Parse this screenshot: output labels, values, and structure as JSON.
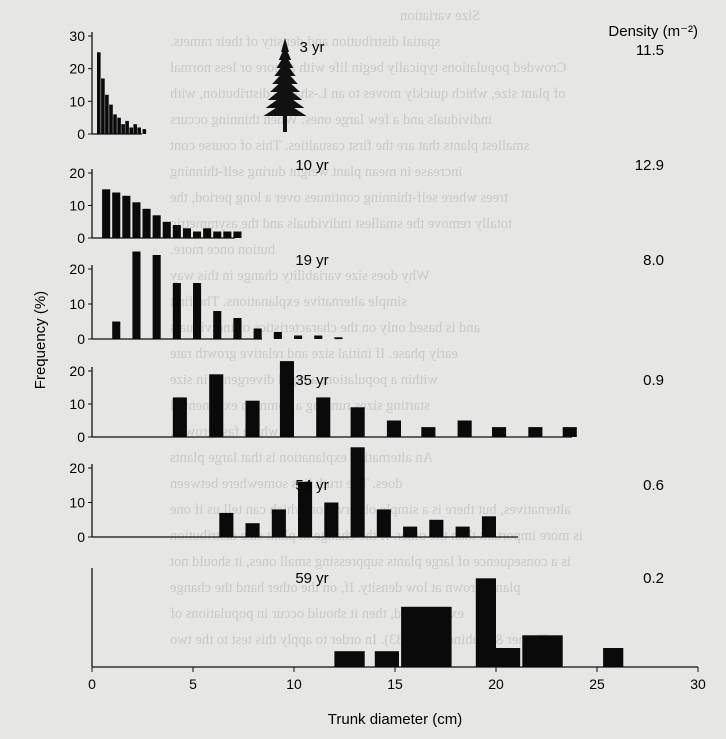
{
  "chart_data": {
    "type": "bar",
    "xlabel": "Trunk diameter (cm)",
    "ylabel": "Frequency (%)",
    "density_header": "Density (m⁻²)",
    "xlim": [
      0,
      30
    ],
    "x_ticks": [
      "0",
      "5",
      "10",
      "15",
      "20",
      "25",
      "30"
    ],
    "panels": [
      {
        "label": "3 yr",
        "density": "11.5",
        "ylim": [
          0,
          30
        ],
        "y_ticks": [
          "30",
          "20",
          "10",
          "0"
        ],
        "bars": [
          {
            "x": 0.25,
            "w": 0.18,
            "v": 25
          },
          {
            "x": 0.45,
            "w": 0.18,
            "v": 17
          },
          {
            "x": 0.65,
            "w": 0.18,
            "v": 12
          },
          {
            "x": 0.85,
            "w": 0.18,
            "v": 9
          },
          {
            "x": 1.05,
            "w": 0.18,
            "v": 6
          },
          {
            "x": 1.25,
            "w": 0.18,
            "v": 5
          },
          {
            "x": 1.45,
            "w": 0.18,
            "v": 3
          },
          {
            "x": 1.65,
            "w": 0.18,
            "v": 4
          },
          {
            "x": 1.85,
            "w": 0.18,
            "v": 2
          },
          {
            "x": 2.05,
            "w": 0.18,
            "v": 3
          },
          {
            "x": 2.25,
            "w": 0.18,
            "v": 2
          },
          {
            "x": 2.5,
            "w": 0.18,
            "v": 1.5
          }
        ]
      },
      {
        "label": "10 yr",
        "density": "12.9",
        "ylim": [
          0,
          20
        ],
        "y_ticks": [
          "20",
          "10",
          "0"
        ],
        "bars": [
          {
            "x": 0.5,
            "w": 0.4,
            "v": 15
          },
          {
            "x": 1.0,
            "w": 0.4,
            "v": 14
          },
          {
            "x": 1.5,
            "w": 0.4,
            "v": 13
          },
          {
            "x": 2.0,
            "w": 0.4,
            "v": 11
          },
          {
            "x": 2.5,
            "w": 0.4,
            "v": 9
          },
          {
            "x": 3.0,
            "w": 0.4,
            "v": 7
          },
          {
            "x": 3.5,
            "w": 0.4,
            "v": 5
          },
          {
            "x": 4.0,
            "w": 0.4,
            "v": 4
          },
          {
            "x": 4.5,
            "w": 0.4,
            "v": 3
          },
          {
            "x": 5.0,
            "w": 0.4,
            "v": 2
          },
          {
            "x": 5.5,
            "w": 0.4,
            "v": 3
          },
          {
            "x": 6.0,
            "w": 0.4,
            "v": 2
          },
          {
            "x": 6.5,
            "w": 0.4,
            "v": 2
          },
          {
            "x": 7.0,
            "w": 0.4,
            "v": 2
          }
        ]
      },
      {
        "label": "19 yr",
        "density": "8.0",
        "ylim": [
          0,
          20
        ],
        "y_ticks": [
          "20",
          "10",
          "0"
        ],
        "bars": [
          {
            "x": 1.0,
            "w": 0.4,
            "v": 5
          },
          {
            "x": 2.0,
            "w": 0.4,
            "v": 25
          },
          {
            "x": 3.0,
            "w": 0.4,
            "v": 24
          },
          {
            "x": 4.0,
            "w": 0.4,
            "v": 16
          },
          {
            "x": 5.0,
            "w": 0.4,
            "v": 16
          },
          {
            "x": 6.0,
            "w": 0.4,
            "v": 8
          },
          {
            "x": 7.0,
            "w": 0.4,
            "v": 6
          },
          {
            "x": 8.0,
            "w": 0.4,
            "v": 3
          },
          {
            "x": 9.0,
            "w": 0.4,
            "v": 2
          },
          {
            "x": 10.0,
            "w": 0.4,
            "v": 1
          },
          {
            "x": 11.0,
            "w": 0.4,
            "v": 1
          },
          {
            "x": 12.0,
            "w": 0.4,
            "v": 0.5
          }
        ]
      },
      {
        "label": "35 yr",
        "density": "0.9",
        "ylim": [
          0,
          20
        ],
        "y_ticks": [
          "20",
          "10",
          "0"
        ],
        "bars": [
          {
            "x": 4.0,
            "w": 0.7,
            "v": 12
          },
          {
            "x": 5.8,
            "w": 0.7,
            "v": 19
          },
          {
            "x": 7.6,
            "w": 0.7,
            "v": 11
          },
          {
            "x": 9.3,
            "w": 0.7,
            "v": 23
          },
          {
            "x": 11.1,
            "w": 0.7,
            "v": 12
          },
          {
            "x": 12.8,
            "w": 0.7,
            "v": 9
          },
          {
            "x": 14.6,
            "w": 0.7,
            "v": 5
          },
          {
            "x": 16.3,
            "w": 0.7,
            "v": 3
          },
          {
            "x": 18.1,
            "w": 0.7,
            "v": 5
          },
          {
            "x": 19.8,
            "w": 0.7,
            "v": 3
          },
          {
            "x": 21.6,
            "w": 0.7,
            "v": 3
          },
          {
            "x": 23.3,
            "w": 0.7,
            "v": 3
          }
        ]
      },
      {
        "label": "54 yr",
        "density": "0.6",
        "ylim": [
          0,
          20
        ],
        "y_ticks": [
          "20",
          "10",
          "0"
        ],
        "bars": [
          {
            "x": 6.3,
            "w": 0.7,
            "v": 7
          },
          {
            "x": 7.6,
            "w": 0.7,
            "v": 4
          },
          {
            "x": 8.9,
            "w": 0.7,
            "v": 8
          },
          {
            "x": 10.2,
            "w": 0.7,
            "v": 16
          },
          {
            "x": 11.5,
            "w": 0.7,
            "v": 10
          },
          {
            "x": 12.8,
            "w": 0.7,
            "v": 26
          },
          {
            "x": 14.1,
            "w": 0.7,
            "v": 8
          },
          {
            "x": 15.4,
            "w": 0.7,
            "v": 3
          },
          {
            "x": 16.7,
            "w": 0.7,
            "v": 5
          },
          {
            "x": 18.0,
            "w": 0.7,
            "v": 3
          },
          {
            "x": 19.3,
            "w": 0.7,
            "v": 6
          }
        ]
      },
      {
        "label": "59 yr",
        "density": "0.2",
        "ylim": [
          0,
          30
        ],
        "y_ticks": [],
        "bars": [
          {
            "x": 12.0,
            "w": 1.5,
            "v": 5
          },
          {
            "x": 14.0,
            "w": 1.2,
            "v": 5
          },
          {
            "x": 15.3,
            "w": 2.5,
            "v": 19
          },
          {
            "x": 19.0,
            "w": 1.0,
            "v": 28
          },
          {
            "x": 20.0,
            "w": 1.2,
            "v": 6
          },
          {
            "x": 21.3,
            "w": 2.0,
            "v": 10
          },
          {
            "x": 25.3,
            "w": 1.0,
            "v": 6
          }
        ]
      }
    ]
  },
  "background_text": [
    "Size variation",
    "spatial distribution and density of their ramets.",
    "Crowded populations typically begin life with a more or less normal",
    "of plant size, which quickly moves to an L-shaped distribution, with",
    "individuals and a few large ones. When thinning occurs",
    "smallest plants that are the first casualties. This of course cont",
    "increase in mean plant weight during self-thinning",
    "trees where self-thinning continues over a long period, the",
    "totally remove the smallest individuals and the asymmetric",
    "bution once more.",
    "Why does size variability change in this way",
    "simple alternative explanations. The first",
    "and is based only on the characteristics of individuals",
    "early phase. If initial size and relative growth rate",
    "within a population, a rapid divergence in size",
    "starting sizes running a common exponential",
    "which fast growth.",
    "An alternative explanation is that large plants",
    "does. The truth lies somewhere between",
    "alternatives, but there is a simple observation which can tell us if one",
    "is more important than the other. If the change in plant size distribution",
    "is a consequence of large plants suppressing small ones, it should not",
    "plants grown at low density. If, on the other hand the change",
    "experienced, then it should occur in populations of",
    "(Turner & Rabinowitz 1983). In order to apply this test to the two"
  ]
}
